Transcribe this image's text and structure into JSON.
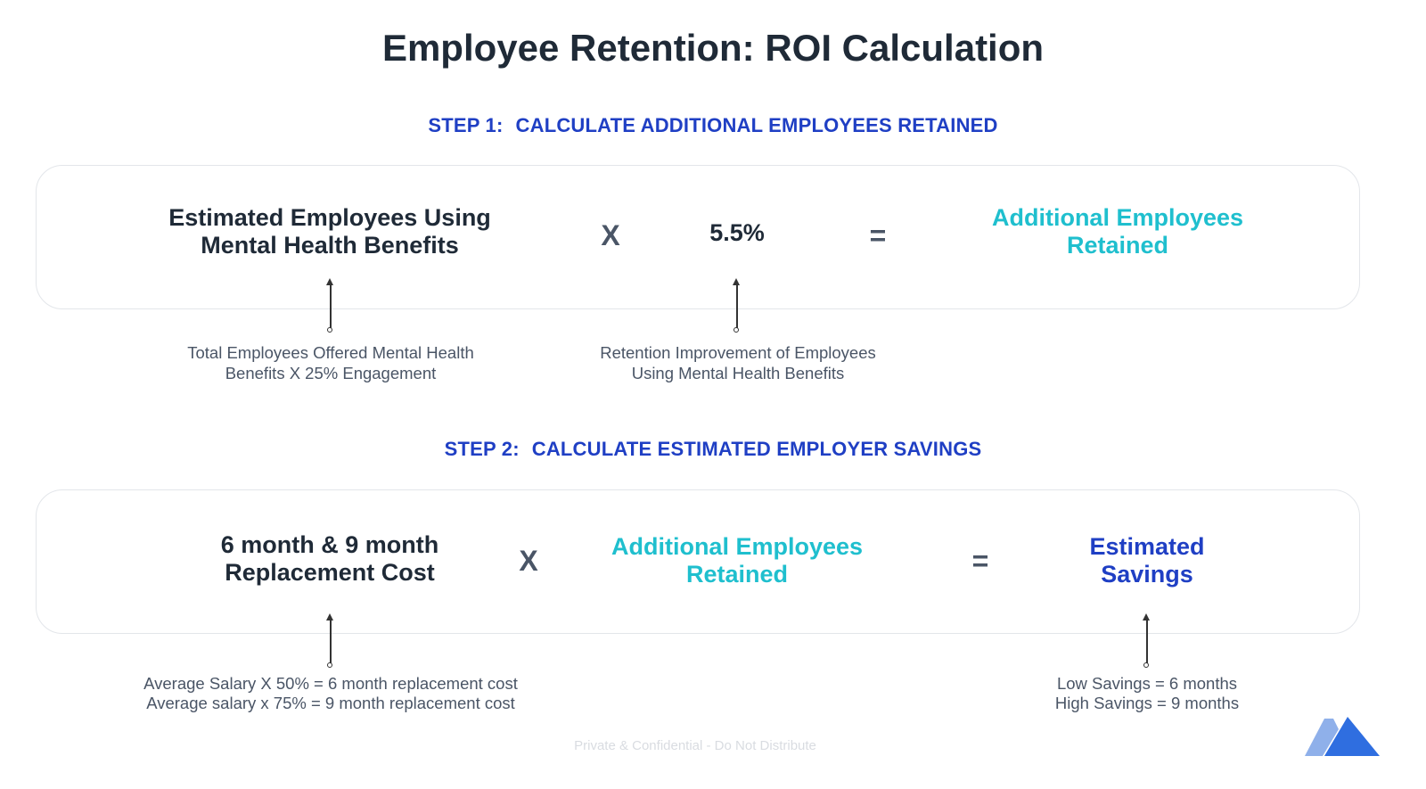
{
  "title": "Employee Retention: ROI Calculation",
  "step1": {
    "label": "STEP 1:",
    "heading": "CALCULATE ADDITIONAL EMPLOYEES RETAINED",
    "term_a": [
      "Estimated Employees Using",
      "Mental Health Benefits"
    ],
    "operator_multiply": "X",
    "term_b": "5.5%",
    "operator_equals": "=",
    "result": [
      "Additional Employees",
      "Retained"
    ],
    "note_a": [
      "Total Employees Offered Mental Health",
      "Benefits X 25% Engagement"
    ],
    "note_b": [
      "Retention Improvement of Employees",
      "Using Mental Health Benefits"
    ]
  },
  "step2": {
    "label": "STEP 2:",
    "heading": "CALCULATE ESTIMATED EMPLOYER SAVINGS",
    "term_a": [
      "6 month & 9 month",
      "Replacement Cost"
    ],
    "operator_multiply": "X",
    "term_b": [
      "Additional Employees",
      "Retained"
    ],
    "operator_equals": "=",
    "result": [
      "Estimated",
      "Savings"
    ],
    "note_a": [
      "Average Salary X 50% = 6 month replacement cost",
      "Average salary x 75% = 9 month replacement cost"
    ],
    "note_c": [
      "Low Savings = 6 months",
      "High Savings = 9 months"
    ]
  },
  "footer": "Private & Confidential - Do Not Distribute",
  "colors": {
    "dark": "#1f2a37",
    "teal": "#1fbfce",
    "blue": "#1f3fc4",
    "logo_light": "#8fb0ea",
    "logo_dark": "#2f6ee0"
  },
  "icons": {
    "logo": "brand-mountain-logo-icon"
  }
}
